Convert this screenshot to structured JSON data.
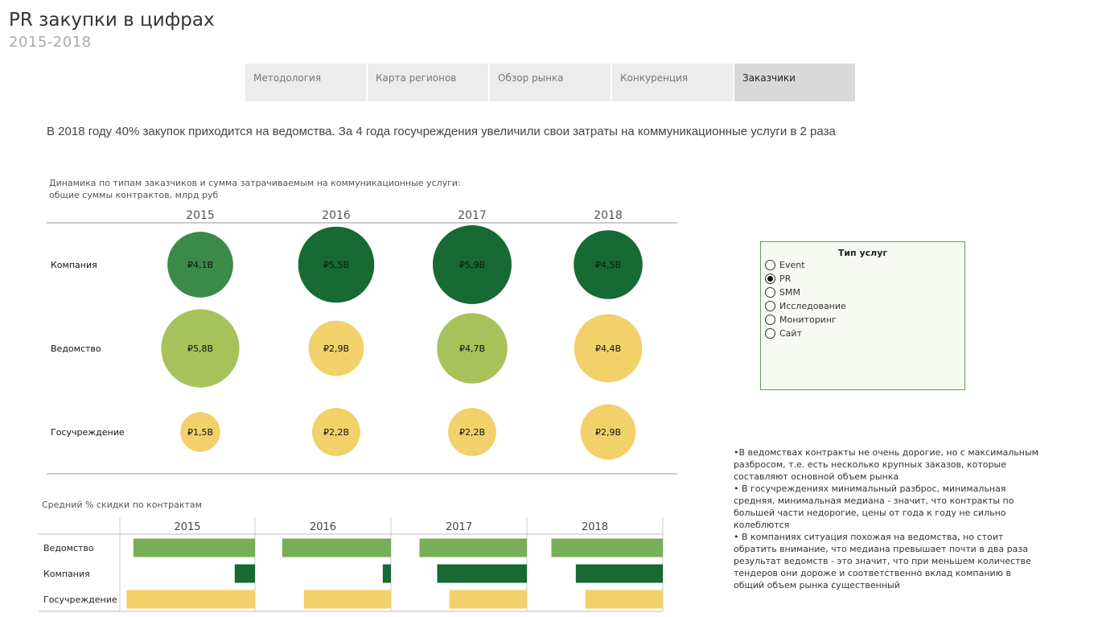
{
  "title": "PR закупки в цифрах",
  "subtitle": "2015-2018",
  "tabs": [
    {
      "label": "Методология",
      "active": false
    },
    {
      "label": "Карта регионов",
      "active": false
    },
    {
      "label": "Обзор рынка",
      "active": false
    },
    {
      "label": "Конкуренция",
      "active": false
    },
    {
      "label": "Заказчики",
      "active": true
    }
  ],
  "headline": "В 2018 году 40% закупок приходится на ведомства. За 4 года госучреждения увеличили свои затраты на коммуникационные услуги в 2 раза",
  "bubble_caption_line1": "Динамика по типам заказчиков и сумма затрачиваемым на коммуникационные услуги:",
  "bubble_caption_line2": "общие суммы контрактов, млрд руб",
  "bar_caption": "Средний % скидки по контрактам",
  "colors": {
    "dark_green": "#176a33",
    "mid_green": "#3a8a48",
    "light_green": "#a7c25a",
    "yellow": "#f2d06a",
    "bar_green": "#78ae58",
    "bar_yellow": "#f2d06a"
  },
  "chart_data": [
    {
      "type": "scatter",
      "kind": "bubble",
      "years": [
        "2015",
        "2016",
        "2017",
        "2018"
      ],
      "rows": [
        {
          "name": "Компания",
          "values": [
            4.1,
            5.5,
            5.9,
            4.5
          ],
          "labels": [
            "₽4,1B",
            "₽5,5B",
            "₽5,9B",
            "₽4,5B"
          ],
          "colors": [
            "#3a8a48",
            "#176a33",
            "#176a33",
            "#176a33"
          ]
        },
        {
          "name": "Ведомство",
          "values": [
            5.8,
            2.9,
            4.7,
            4.4
          ],
          "labels": [
            "₽5,8B",
            "₽2,9B",
            "₽4,7B",
            "₽4,4B"
          ],
          "colors": [
            "#a7c25a",
            "#f2d06a",
            "#a7c25a",
            "#f2d06a"
          ]
        },
        {
          "name": "Госучреждение",
          "values": [
            1.5,
            2.2,
            2.2,
            2.9
          ],
          "labels": [
            "₽1,5B",
            "₽2,2B",
            "₽2,2B",
            "₽2,9B"
          ],
          "colors": [
            "#f2d06a",
            "#f2d06a",
            "#f2d06a",
            "#f2d06a"
          ]
        }
      ]
    },
    {
      "type": "bar",
      "orientation": "horizontal",
      "direction": "right-to-left",
      "years": [
        "2015",
        "2016",
        "2017",
        "2018"
      ],
      "rows": [
        {
          "name": "Ведомство",
          "values": [
            0.9,
            0.8,
            0.79,
            0.82
          ],
          "color": "#78ae58"
        },
        {
          "name": "Компания",
          "values": [
            0.15,
            0.06,
            0.66,
            0.64
          ],
          "color": "#176a33"
        },
        {
          "name": "Госучреждение",
          "values": [
            0.95,
            0.64,
            0.57,
            0.57
          ],
          "color": "#f2d06a"
        }
      ]
    }
  ],
  "filter": {
    "title": "Тип услуг",
    "options": [
      {
        "label": "Event",
        "selected": false
      },
      {
        "label": "PR",
        "selected": true
      },
      {
        "label": "SMM",
        "selected": false
      },
      {
        "label": "Исследование",
        "selected": false
      },
      {
        "label": "Мониторинг",
        "selected": false
      },
      {
        "label": "Сайт",
        "selected": false
      }
    ]
  },
  "notes": [
    "•В ведомствах контракты не очень дорогие, но с максимальным разбросом, т.е. есть несколько крупных заказов, которые составляют основной объем рынка",
    "• В госучреждениях минимальный разброс, минимальная средняя, минимальная медиана - значит, что контракты по большей части недорогие, цены от года к году не сильно колеблются",
    "• В компаниях ситуация похожая на ведомства, но стоит обратить внимание, что медиана превышает почти в два раза результат ведомств - это значит, что при меньшем количестве тендеров они дороже и соответственно вклад компанию в общий объем рынка существенный"
  ]
}
